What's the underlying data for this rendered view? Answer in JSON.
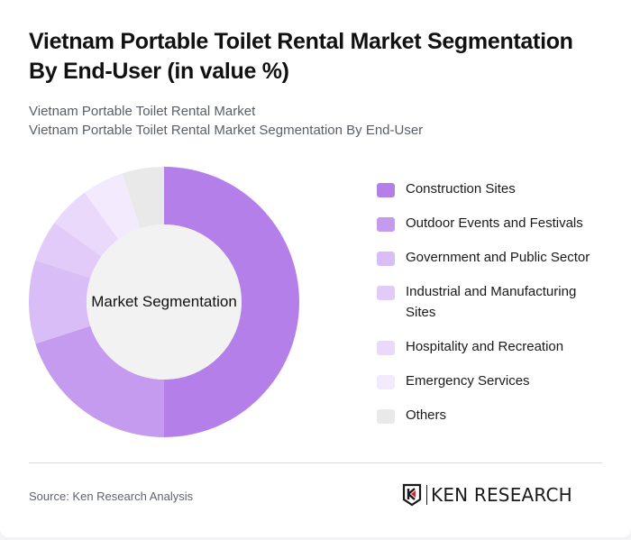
{
  "header": {
    "title": "Vietnam Portable Toilet Rental Market Segmentation By End-User (in value %)",
    "subtitle_line1": "Vietnam Portable Toilet Rental Market",
    "subtitle_line2": "Vietnam Portable Toilet Rental Market Segmentation By End-User"
  },
  "chart": {
    "center_label": "Market Segmentation"
  },
  "legend": [
    {
      "label": "Construction Sites",
      "color": "#b57fea"
    },
    {
      "label": "Outdoor Events and Festivals",
      "color": "#c49bef"
    },
    {
      "label": "Government and Public Sector",
      "color": "#d9bdf6"
    },
    {
      "label": "Industrial and Manufacturing Sites",
      "color": "#e2cbf8"
    },
    {
      "label": "Hospitality and Recreation",
      "color": "#ead9fa"
    },
    {
      "label": "Emergency Services",
      "color": "#f3ebfd"
    },
    {
      "label": "Others",
      "color": "#e9e9ea"
    }
  ],
  "footer": {
    "source": "Source: Ken Research Analysis",
    "logo_text": "KEN RESEARCH"
  },
  "chart_data": {
    "type": "pie",
    "subtype": "donut",
    "title": "Vietnam Portable Toilet Rental Market Segmentation By End-User (in value %)",
    "center_label": "Market Segmentation",
    "categories": [
      "Construction Sites",
      "Outdoor Events and Festivals",
      "Government and Public Sector",
      "Industrial and Manufacturing Sites",
      "Hospitality and Recreation",
      "Emergency Services",
      "Others"
    ],
    "values": [
      50,
      20,
      10,
      5,
      5,
      5,
      5
    ],
    "colors": [
      "#b57fea",
      "#c49bef",
      "#d9bdf6",
      "#e2cbf8",
      "#ead9fa",
      "#f3ebfd",
      "#e9e9ea"
    ],
    "start_angle": "12 o'clock, clockwise",
    "legend_position": "right",
    "unit": "%"
  }
}
